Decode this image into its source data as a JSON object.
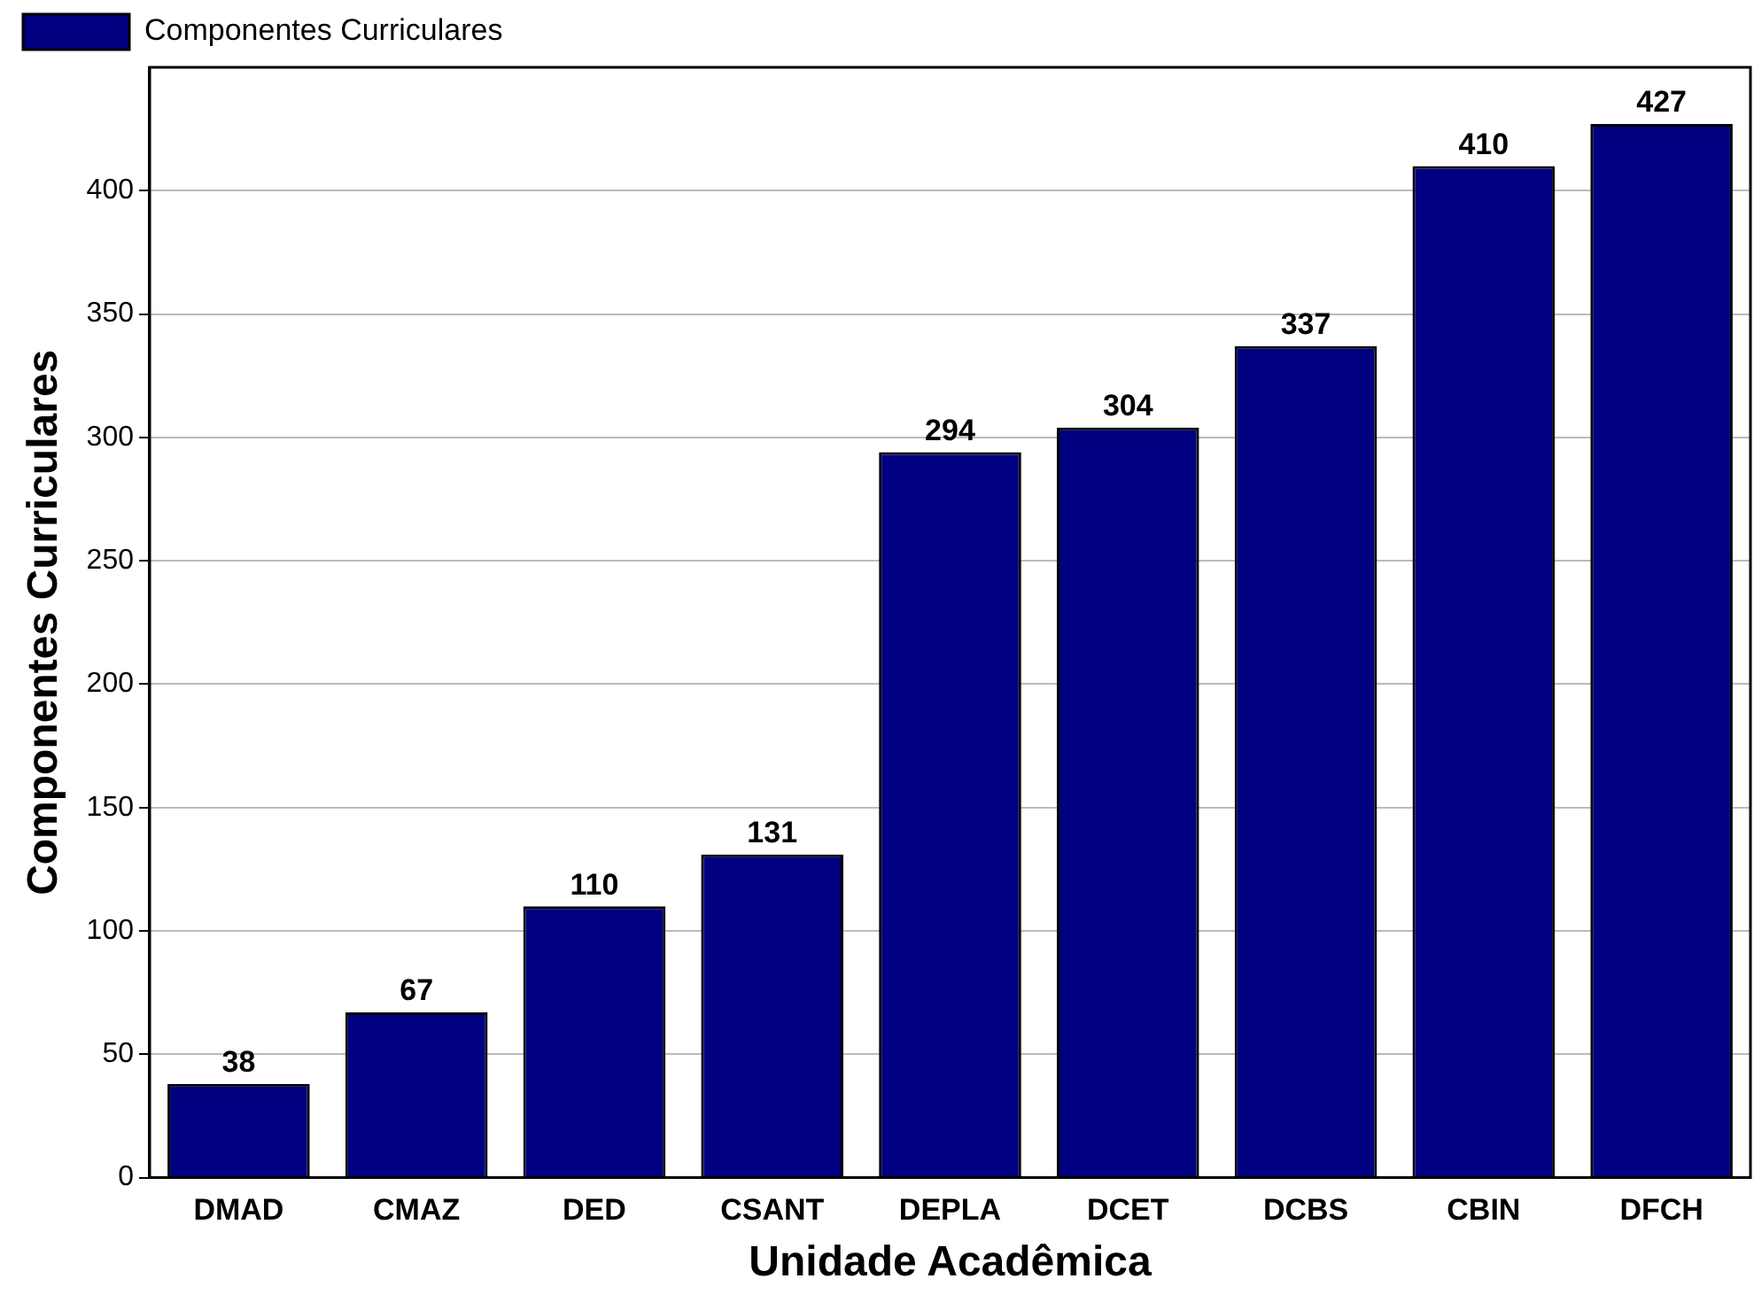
{
  "chart_data": {
    "type": "bar",
    "xlabel": "Unidade Acadêmica",
    "ylabel": "Componentes Curriculares",
    "categories": [
      "DMAD",
      "CMAZ",
      "DED",
      "CSANT",
      "DEPLA",
      "DCET",
      "DCBS",
      "CBIN",
      "DFCH"
    ],
    "series": [
      {
        "name": "Componentes Curriculares",
        "color": "#000080",
        "values": [
          38,
          67,
          110,
          131,
          294,
          304,
          337,
          410,
          427
        ]
      }
    ],
    "ylim": [
      0,
      450
    ],
    "yticks": [
      0,
      50,
      100,
      150,
      200,
      250,
      300,
      350,
      400
    ],
    "grid": "y",
    "legend": "top left",
    "data_labels": true
  }
}
